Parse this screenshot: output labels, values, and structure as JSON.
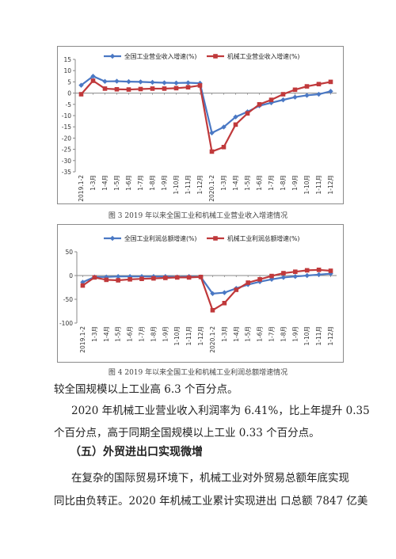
{
  "figures": [
    {
      "caption": "图 3  2019 年以来全国工业和机械工业营业收入增速情况",
      "chart_data": {
        "type": "line",
        "categories": [
          "2019.1-2",
          "1-3月",
          "1-4月",
          "1-5月",
          "1-6月",
          "1-7月",
          "1-8月",
          "1-9月",
          "1-10月",
          "1-11月",
          "1-12月",
          "2020.1-2",
          "1-3月",
          "1-4月",
          "1-5月",
          "1-6月",
          "1-7月",
          "1-8月",
          "1-9月",
          "1-10月",
          "1-11月",
          "1-12月"
        ],
        "ylim": [
          -35,
          15
        ],
        "yticks": [
          15,
          10,
          5,
          0,
          -5,
          -10,
          -15,
          -20,
          -25,
          -30,
          -35
        ],
        "legend": "top",
        "series": [
          {
            "name": "全国工业营业收入增速(%)",
            "color": "#4a78c4",
            "marker": "diamond",
            "values": [
              3.5,
              7.5,
              5.2,
              5.3,
              5.1,
              5.0,
              4.8,
              4.6,
              4.5,
              4.6,
              4.4,
              -17.7,
              -15.1,
              -10.6,
              -8.3,
              -5.6,
              -4.3,
              -3.0,
              -1.8,
              -1.0,
              -0.5,
              0.8
            ]
          },
          {
            "name": "机械工业营业收入增速(%)",
            "color": "#c0393b",
            "marker": "square",
            "values": [
              -0.5,
              5.5,
              2.0,
              1.7,
              1.6,
              1.8,
              2.0,
              2.0,
              2.2,
              2.6,
              3.4,
              -26.0,
              -24.0,
              -14.0,
              -9.0,
              -5.0,
              -3.0,
              -0.5,
              1.5,
              3.0,
              4.0,
              5.0
            ]
          }
        ]
      }
    },
    {
      "caption": "图 4  2019 年以来全国工业和机械工业利润总额增速情况",
      "chart_data": {
        "type": "line",
        "categories": [
          "2019.1-2",
          "1-3月",
          "1-4月",
          "1-5月",
          "1-6月",
          "1-7月",
          "1-8月",
          "1-9月",
          "1-10月",
          "1-11月",
          "1-12月",
          "2020.1-2",
          "1-3月",
          "1-4月",
          "1-5月",
          "1-6月",
          "1-7月",
          "1-8月",
          "1-9月",
          "1-10月",
          "1-11月",
          "1-12月"
        ],
        "ylim": [
          -100,
          50
        ],
        "yticks": [
          50,
          0,
          -50,
          -100
        ],
        "legend": "top",
        "series": [
          {
            "name": "全国工业利润总额增速(%)",
            "color": "#4a78c4",
            "marker": "diamond",
            "values": [
              -14,
              -3,
              -3,
              -2,
              -2,
              -2,
              -2,
              -2,
              -3,
              -2,
              -3,
              -38,
              -36,
              -27,
              -19,
              -13,
              -8,
              -4,
              -2,
              0,
              2,
              4
            ]
          },
          {
            "name": "机械工业利润总额增速(%)",
            "color": "#c0393b",
            "marker": "square",
            "values": [
              -21,
              -4,
              -9,
              -10,
              -8,
              -7,
              -6,
              -5,
              -4,
              -4,
              -3,
              -73,
              -58,
              -30,
              -15,
              -8,
              -1,
              5,
              8,
              11,
              12,
              10
            ]
          }
        ]
      }
    }
  ],
  "paragraphs": {
    "p1": "较全国规模以上工业高 6.3 个百分点。",
    "p2": "2020 年机械工业营业收入利润率为 6.41%，比上年提升 0.35",
    "p3": "个百分点，高于同期全国规模以上工业 0.33 个百分点。",
    "heading": "（五）外贸进出口实现微增",
    "p4": "在复杂的国际贸易环境下，机械工业对外贸易总额年底实现",
    "p5": "同比由负转正。2020 年机械工业累计实现进出 口总额 7847 亿美"
  }
}
